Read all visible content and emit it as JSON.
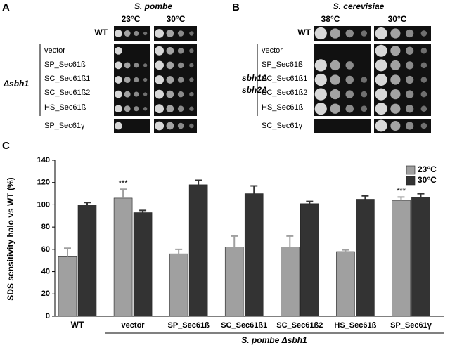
{
  "panel_a": {
    "label": "A",
    "title": "S. pombe",
    "columns": [
      "23°C",
      "30°C"
    ],
    "wt": "WT",
    "rows": [
      "vector",
      "SP_Sec61ß",
      "SC_Sec61ß1",
      "SC_Sec61ß2",
      "HS_Sec61ß",
      "SP_Sec61γ"
    ],
    "strain": "Δsbh1"
  },
  "panel_b": {
    "label": "B",
    "title": "S. cerevisiae",
    "columns": [
      "38°C",
      "30°C"
    ],
    "wt": "WT",
    "rows": [
      "vector",
      "SP_Sec61ß",
      "SC_Sec61ß1",
      "SC_Sec61ß2",
      "HS_Sec61ß",
      "SC_Sec61γ"
    ],
    "strain": [
      "sbh1Δ",
      "sbh2Δ"
    ]
  },
  "chart_data": {
    "type": "bar",
    "panel_label": "C",
    "ylabel": "SDS sensitivity halo vs WT (%)",
    "categories": [
      "WT",
      "vector",
      "SP_Sec61ß",
      "SC_Sec61ß1",
      "SC_Sec61ß2",
      "HS_Sec61ß",
      "SP_Sec61γ"
    ],
    "series": [
      {
        "name": "23°C",
        "color": "#a0a0a0",
        "values": [
          54,
          106,
          56,
          62,
          62,
          58,
          104
        ],
        "errors": [
          7,
          8,
          4,
          10,
          10,
          1.5,
          3
        ]
      },
      {
        "name": "30°C",
        "color": "#333333",
        "values": [
          100,
          93,
          118,
          110,
          101,
          105,
          107
        ],
        "errors": [
          2,
          2,
          4,
          7,
          2,
          3,
          3
        ]
      }
    ],
    "ylim": [
      0,
      140
    ],
    "yticks": [
      0,
      20,
      40,
      60,
      80,
      100,
      120,
      140
    ],
    "group_label": "S. pombe Δsbh1",
    "annotations": [
      {
        "text": "***",
        "category": "vector"
      },
      {
        "text": "***",
        "category": "SP_Sec61γ"
      }
    ],
    "legend": "top-right"
  }
}
